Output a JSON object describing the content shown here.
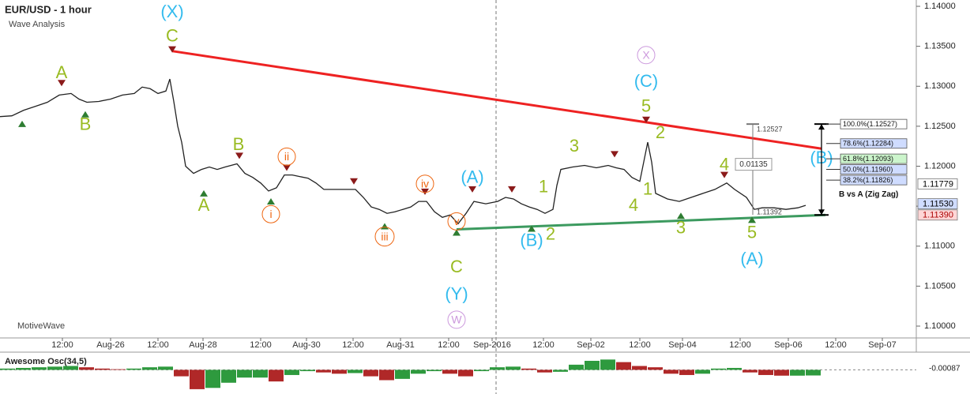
{
  "chart_data": [
    {
      "type": "line",
      "title": "EUR/USD - 1 hour",
      "subtitle": "Wave Analysis",
      "watermark": "MotiveWave",
      "xlim": [
        0,
        232
      ],
      "ylim": [
        1.09852,
        1.14079
      ],
      "xticks": [
        {
          "value": 15.8,
          "label": "12:00"
        },
        {
          "value": 28,
          "label": "Aug-26"
        },
        {
          "value": 40,
          "label": "12:00"
        },
        {
          "value": 51.4,
          "label": "Aug-28"
        },
        {
          "value": 66,
          "label": "12:00"
        },
        {
          "value": 77.6,
          "label": "Aug-30"
        },
        {
          "value": 89.4,
          "label": "12:00"
        },
        {
          "value": 101.4,
          "label": "Aug-31"
        },
        {
          "value": 113.6,
          "label": "12:00"
        },
        {
          "value": 124.6,
          "label": "Sep-2016"
        },
        {
          "value": 137.6,
          "label": "12:00"
        },
        {
          "value": 149.6,
          "label": "Sep-02"
        },
        {
          "value": 162,
          "label": "12:00"
        },
        {
          "value": 172.8,
          "label": "Sep-04"
        },
        {
          "value": 187.4,
          "label": "12:00"
        },
        {
          "value": 199.6,
          "label": "Sep-06"
        },
        {
          "value": 211.6,
          "label": "12:00"
        },
        {
          "value": 223.4,
          "label": "Sep-07"
        }
      ],
      "yticks": [
        {
          "value": 1.14,
          "label": "1.14000"
        },
        {
          "value": 1.135,
          "label": "1.13500"
        },
        {
          "value": 1.13,
          "label": "1.13000"
        },
        {
          "value": 1.125,
          "label": "1.12500"
        },
        {
          "value": 1.12,
          "label": "1.12000"
        },
        {
          "value": 1.115,
          "label": "1.11500"
        },
        {
          "value": 1.11,
          "label": "1.11000"
        },
        {
          "value": 1.105,
          "label": "1.10500"
        },
        {
          "value": 1.1,
          "label": "1.10000"
        }
      ],
      "series": [
        {
          "color": "#222222",
          "x": [
            0,
            3,
            6,
            9,
            12,
            15,
            18,
            20,
            22,
            25,
            28,
            31,
            34,
            36,
            38,
            40,
            42,
            43,
            44,
            45,
            46,
            47,
            49,
            51,
            53,
            55,
            57,
            60,
            62,
            64,
            66,
            68,
            70,
            72,
            74,
            76,
            78,
            80,
            82,
            84,
            87,
            90,
            92,
            94,
            96,
            98,
            100,
            102,
            104,
            106,
            108,
            110,
            112,
            114,
            116,
            118,
            120,
            123,
            126,
            128,
            130,
            132,
            134,
            136,
            138,
            140,
            141,
            142,
            145,
            148,
            151,
            154,
            156,
            158,
            160,
            162,
            164,
            165,
            166,
            169,
            172,
            175,
            178,
            181,
            184,
            186,
            189,
            191,
            193,
            196,
            199,
            202,
            204
          ],
          "values": [
            1.1262,
            1.1263,
            1.127,
            1.1275,
            1.128,
            1.1289,
            1.1291,
            1.1284,
            1.128,
            1.1281,
            1.1284,
            1.1289,
            1.1291,
            1.1299,
            1.1297,
            1.1291,
            1.1294,
            1.1309,
            1.1281,
            1.125,
            1.123,
            1.12,
            1.1191,
            1.1196,
            1.1199,
            1.1196,
            1.1199,
            1.1203,
            1.1191,
            1.1186,
            1.1179,
            1.1169,
            1.1173,
            1.1189,
            1.1189,
            1.1187,
            1.1185,
            1.1179,
            1.1171,
            1.1171,
            1.1171,
            1.1171,
            1.1161,
            1.1149,
            1.1146,
            1.1141,
            1.1143,
            1.1146,
            1.1149,
            1.1156,
            1.1156,
            1.1143,
            1.1136,
            1.1139,
            1.1128,
            1.1141,
            1.1156,
            1.1153,
            1.1156,
            1.1161,
            1.1159,
            1.1153,
            1.1149,
            1.1146,
            1.1141,
            1.1146,
            1.1176,
            1.1196,
            1.1199,
            1.1201,
            1.1198,
            1.1201,
            1.1198,
            1.1196,
            1.1186,
            1.1181,
            1.123,
            1.1205,
            1.1166,
            1.1159,
            1.1156,
            1.1161,
            1.1166,
            1.1171,
            1.1179,
            1.1171,
            1.1161,
            1.1146,
            1.1148,
            1.1148,
            1.1146,
            1.1148,
            1.1151
          ]
        }
      ],
      "pivot_high_color": "#8b1a1a",
      "pivot_low_color": "#2e7d32",
      "pivot_highs": [
        [
          43.6,
          1.1346
        ],
        [
          15.6,
          1.1304
        ],
        [
          60.6,
          1.1213
        ],
        [
          72.6,
          1.1198
        ],
        [
          89.6,
          1.1181
        ],
        [
          107.6,
          1.1168
        ],
        [
          119.6,
          1.1171
        ],
        [
          129.6,
          1.1171
        ],
        [
          155.6,
          1.1215
        ],
        [
          163.6,
          1.1258
        ],
        [
          183.4,
          1.1189
        ]
      ],
      "pivot_lows": [
        [
          5.6,
          1.1253
        ],
        [
          21.6,
          1.1265
        ],
        [
          51.6,
          1.1166
        ],
        [
          68.6,
          1.1156
        ],
        [
          97.4,
          1.1125
        ],
        [
          115.6,
          1.1117
        ],
        [
          134.6,
          1.1122
        ],
        [
          172.4,
          1.1138
        ],
        [
          190.4,
          1.1133
        ]
      ],
      "trend_lines": [
        {
          "color": "#ee2222",
          "x": [
            43.6,
            208
          ],
          "values": [
            1.1344,
            1.1222
          ]
        },
        {
          "color": "#3c9a5f",
          "x": [
            115.6,
            209
          ],
          "values": [
            1.1121,
            1.1139
          ]
        }
      ],
      "session_line": 125.6,
      "annotations": [
        {
          "text": "(X)",
          "color": "#33bbee",
          "x": 43.6,
          "y": 1.1393
        },
        {
          "text": "C",
          "color": "#99bb22",
          "x": 43.6,
          "y": 1.1363
        },
        {
          "text": "A",
          "color": "#99bb22",
          "x": 15.6,
          "y": 1.1317
        },
        {
          "text": "B",
          "color": "#99bb22",
          "x": 21.6,
          "y": 1.1252
        },
        {
          "text": "B",
          "color": "#99bb22",
          "x": 60.4,
          "y": 1.1227
        },
        {
          "text": "A",
          "color": "#99bb22",
          "x": 51.6,
          "y": 1.1151
        },
        {
          "text": "ii",
          "color": "#ee6611",
          "x": 72.6,
          "y": 1.1212,
          "circled": true
        },
        {
          "text": "i",
          "color": "#ee6611",
          "x": 68.6,
          "y": 1.114,
          "circled": true
        },
        {
          "text": "iii",
          "color": "#ee6611",
          "x": 97.4,
          "y": 1.1112,
          "circled": true
        },
        {
          "text": "iv",
          "color": "#ee6611",
          "x": 107.6,
          "y": 1.1178,
          "circled": true
        },
        {
          "text": "v",
          "color": "#ee6611",
          "x": 115.6,
          "y": 1.1131,
          "circled": true
        },
        {
          "text": "(A)",
          "color": "#33bbee",
          "x": 119.6,
          "y": 1.1186
        },
        {
          "text": "C",
          "color": "#99bb22",
          "x": 115.6,
          "y": 1.1074
        },
        {
          "text": "(Y)",
          "color": "#33bbee",
          "x": 115.6,
          "y": 1.104
        },
        {
          "text": "W",
          "color": "#cc99dd",
          "x": 115.6,
          "y": 1.1008,
          "circled": true
        },
        {
          "text": "1",
          "color": "#99bb22",
          "x": 137.6,
          "y": 1.1174
        },
        {
          "text": "(B)",
          "color": "#33bbee",
          "x": 134.6,
          "y": 1.1107
        },
        {
          "text": "2",
          "color": "#99bb22",
          "x": 139.4,
          "y": 1.1115
        },
        {
          "text": "3",
          "color": "#99bb22",
          "x": 145.4,
          "y": 1.1225
        },
        {
          "text": "5",
          "color": "#99bb22",
          "x": 163.6,
          "y": 1.1275
        },
        {
          "text": "(C)",
          "color": "#33bbee",
          "x": 163.6,
          "y": 1.1306
        },
        {
          "text": "X",
          "color": "#cc99dd",
          "x": 163.6,
          "y": 1.1339,
          "circled": true
        },
        {
          "text": "2",
          "color": "#99bb22",
          "x": 167.2,
          "y": 1.1242
        },
        {
          "text": "1",
          "color": "#99bb22",
          "x": 164,
          "y": 1.1171
        },
        {
          "text": "4",
          "color": "#99bb22",
          "x": 160.4,
          "y": 1.1151
        },
        {
          "text": "3",
          "color": "#99bb22",
          "x": 172.4,
          "y": 1.1123
        },
        {
          "text": "4",
          "color": "#99bb22",
          "x": 183.4,
          "y": 1.1202
        },
        {
          "text": "5",
          "color": "#99bb22",
          "x": 190.4,
          "y": 1.1117
        },
        {
          "text": "(A)",
          "color": "#33bbee",
          "x": 190.4,
          "y": 1.1084
        },
        {
          "text": "(B)",
          "color": "#33bbee",
          "x": 208,
          "y": 1.121
        }
      ],
      "measure": {
        "x": 190.6,
        "from": 1.11392,
        "to": 1.12527,
        "distance": 0.01135
      },
      "fib": {
        "x": 208,
        "title": "B vs A (Zig Zag)",
        "from": 1.1139,
        "to": 1.12527,
        "levels": [
          {
            "label": "100.0%(1.12527)",
            "value": 1.12527,
            "fill": "#ffffff"
          },
          {
            "label": "78.6%(1.12284)",
            "value": 1.12284,
            "fill": "#cfdcff"
          },
          {
            "label": "61.8%(1.12093)",
            "value": 1.12093,
            "fill": "#ccf5cc"
          },
          {
            "label": "50.0%(1.11960)",
            "value": 1.1196,
            "fill": "#cfdcff"
          },
          {
            "label": "38.2%(1.11826)",
            "value": 1.11826,
            "fill": "#cfdcff"
          }
        ]
      },
      "price_markers": [
        {
          "value": 1.11779,
          "fill": "#ffffff",
          "text_color": "#000000"
        },
        {
          "value": 1.1153,
          "label": "1.11530",
          "fill": "#cfdcff",
          "text_color": "#000000"
        },
        {
          "value": 1.1139,
          "label": "1.11390",
          "fill": "#ffd6d6",
          "text_color": "#aa0000"
        }
      ]
    },
    {
      "type": "bar",
      "title": "Awesome Osc(34,5)",
      "xlim": [
        0,
        232
      ],
      "ylim": [
        -0.0035,
        0.0025
      ],
      "up_color": "#2e9a3e",
      "down_color": "#b02828",
      "current": -0.00087,
      "x": [
        0,
        4,
        8,
        12,
        16,
        20,
        24,
        28,
        32,
        36,
        40,
        44,
        48,
        52,
        56,
        60,
        64,
        68,
        72,
        76,
        80,
        84,
        88,
        92,
        96,
        100,
        104,
        108,
        112,
        116,
        120,
        124,
        128,
        132,
        136,
        140,
        144,
        148,
        152,
        156,
        160,
        164,
        168,
        172,
        176,
        180,
        184,
        188,
        192,
        196,
        200,
        204
      ],
      "values": [
        0.0002,
        0.0003,
        0.0004,
        0.0005,
        0.0006,
        0.0004,
        0.0002,
        0.0001,
        0.0002,
        0.0004,
        0.0005,
        -0.001,
        -0.003,
        -0.0028,
        -0.002,
        -0.0012,
        -0.0012,
        -0.0018,
        -0.0008,
        -0.0002,
        -0.0004,
        -0.0006,
        -0.0005,
        -0.001,
        -0.0016,
        -0.0014,
        -0.0006,
        -0.0002,
        -0.0006,
        -0.001,
        -0.0002,
        0.0004,
        0.0005,
        0.0002,
        -0.0004,
        -0.0003,
        0.0008,
        0.0014,
        0.0016,
        0.0012,
        0.0006,
        0.0004,
        -0.0006,
        -0.0008,
        -0.0006,
        0.0002,
        0.0003,
        -0.0004,
        -0.0008,
        -0.0009,
        -0.0009,
        -0.00087
      ]
    }
  ]
}
